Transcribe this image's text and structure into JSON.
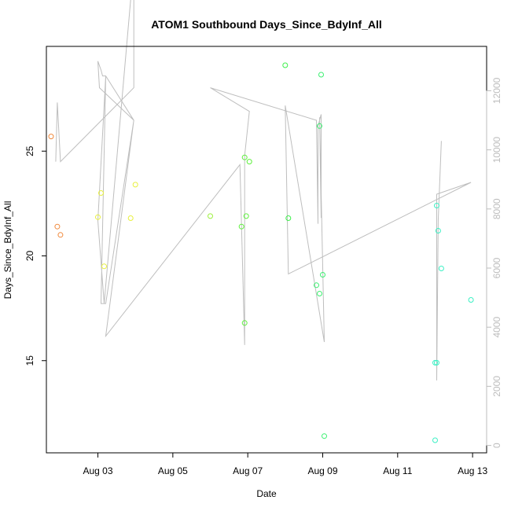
{
  "chart_data": {
    "type": "scatter",
    "title": "ATOM1 Southbound Days_Since_BdyInf_All",
    "xlabel": "Date",
    "ylabel": "Days_Since_BdyInf_All",
    "x_ticks": [
      "Aug 03",
      "Aug 05",
      "Aug 07",
      "Aug 09",
      "Aug 11",
      "Aug 13"
    ],
    "y_ticks": [
      "15",
      "20",
      "25"
    ],
    "y2_ticks": [
      "0",
      "2000",
      "4000",
      "6000",
      "8000",
      "10000",
      "12000"
    ],
    "xlim": [
      "2023-08-01 15:00",
      "2023-08-13 09:00"
    ],
    "ylim": [
      10.6,
      30.0
    ],
    "y2lim": [
      -250,
      13500
    ],
    "point_series": [
      {
        "color": "#f0893c",
        "points": [
          {
            "x": "2023-08-01 18:00",
            "y": 25.7
          },
          {
            "x": "2023-08-01 22:00",
            "y": 21.4
          },
          {
            "x": "2023-08-02 00:00",
            "y": 21.0
          }
        ]
      },
      {
        "color": "#e8f03c",
        "points": [
          {
            "x": "2023-08-03 00:00",
            "y": 21.85
          },
          {
            "x": "2023-08-03 02:00",
            "y": 23.0
          },
          {
            "x": "2023-08-03 04:00",
            "y": 19.5
          },
          {
            "x": "2023-08-03 21:00",
            "y": 21.8
          },
          {
            "x": "2023-08-04 00:00",
            "y": 23.4
          }
        ]
      },
      {
        "color": "#9cf03c",
        "points": [
          {
            "x": "2023-08-06 00:00",
            "y": 21.9
          }
        ]
      },
      {
        "color": "#5df03c",
        "points": [
          {
            "x": "2023-08-06 20:00",
            "y": 21.4
          },
          {
            "x": "2023-08-06 22:00",
            "y": 24.7
          },
          {
            "x": "2023-08-06 22:00",
            "y": 16.8
          },
          {
            "x": "2023-08-06 23:00",
            "y": 21.9
          },
          {
            "x": "2023-08-07 01:00",
            "y": 24.5
          }
        ]
      },
      {
        "color": "#3cf04a",
        "points": [
          {
            "x": "2023-08-08 00:00",
            "y": 29.1
          },
          {
            "x": "2023-08-08 02:00",
            "y": 21.8
          }
        ]
      },
      {
        "color": "#3cf071",
        "points": [
          {
            "x": "2023-08-08 20:00",
            "y": 18.6
          },
          {
            "x": "2023-08-08 22:00",
            "y": 18.2
          },
          {
            "x": "2023-08-08 22:00",
            "y": 26.2
          },
          {
            "x": "2023-08-08 23:00",
            "y": 28.65
          },
          {
            "x": "2023-08-09 00:00",
            "y": 19.1
          },
          {
            "x": "2023-08-09 01:00",
            "y": 11.4
          }
        ]
      },
      {
        "color": "#3cf0c4",
        "points": [
          {
            "x": "2023-08-12 00:00",
            "y": 11.2
          },
          {
            "x": "2023-08-12 00:00",
            "y": 14.9
          },
          {
            "x": "2023-08-12 01:00",
            "y": 14.9
          },
          {
            "x": "2023-08-12 01:00",
            "y": 22.4
          },
          {
            "x": "2023-08-12 02:00",
            "y": 21.2
          },
          {
            "x": "2023-08-12 04:00",
            "y": 19.4
          },
          {
            "x": "2023-08-12 23:00",
            "y": 17.9
          }
        ]
      }
    ],
    "line_series": {
      "axis": "right",
      "color": "#bebebe",
      "points": [
        {
          "x": "2023-08-01 21:00",
          "y": 9600
        },
        {
          "x": "2023-08-01 22:00",
          "y": 11600
        },
        {
          "x": "2023-08-02 00:00",
          "y": 9600
        },
        {
          "x": "2023-08-03 23:00",
          "y": 12100
        },
        {
          "x": "2023-08-03 23:00",
          "y": 16300
        },
        {
          "x": "2023-08-03 04:00",
          "y": 4800
        },
        {
          "x": "2023-08-03 00:00",
          "y": 7600
        },
        {
          "x": "2023-08-03 05:00",
          "y": 12500
        },
        {
          "x": "2023-08-03 02:00",
          "y": 4800
        },
        {
          "x": "2023-08-03 04:00",
          "y": 4800
        },
        {
          "x": "2023-08-03 05:00",
          "y": 4800
        },
        {
          "x": "2023-08-03 23:00",
          "y": 11000
        },
        {
          "x": "2023-08-03 05:00",
          "y": 12500
        },
        {
          "x": "2023-08-03 03:00",
          "y": 12500
        },
        {
          "x": "2023-08-03 02:00",
          "y": 12700
        },
        {
          "x": "2023-08-03 00:00",
          "y": 13000
        },
        {
          "x": "2023-08-03 01:00",
          "y": 12100
        },
        {
          "x": "2023-08-03 23:00",
          "y": 11000
        },
        {
          "x": "2023-08-03 05:00",
          "y": 3700
        },
        {
          "x": "2023-08-06 19:00",
          "y": 9500
        },
        {
          "x": "2023-08-06 22:00",
          "y": 3400
        },
        {
          "x": "2023-08-06 22:00",
          "y": 9800
        },
        {
          "x": "2023-08-07 01:00",
          "y": 11300
        },
        {
          "x": "2023-08-06 00:00",
          "y": 12100
        },
        {
          "x": "2023-08-08 20:00",
          "y": 11000
        },
        {
          "x": "2023-08-08 21:00",
          "y": 7500
        },
        {
          "x": "2023-08-08 21:00",
          "y": 10800
        },
        {
          "x": "2023-08-08 23:00",
          "y": 11200
        },
        {
          "x": "2023-08-08 23:00",
          "y": 7700
        },
        {
          "x": "2023-08-08 22:00",
          "y": 11100
        },
        {
          "x": "2023-08-09 01:00",
          "y": 3500
        },
        {
          "x": "2023-08-08 00:00",
          "y": 11500
        },
        {
          "x": "2023-08-08 02:00",
          "y": 5800
        },
        {
          "x": "2023-08-12 23:00",
          "y": 8900
        },
        {
          "x": "2023-08-12 01:00",
          "y": 8500
        },
        {
          "x": "2023-08-12 01:00",
          "y": 2200
        },
        {
          "x": "2023-08-12 02:00",
          "y": 7600
        },
        {
          "x": "2023-08-12 04:00",
          "y": 10300
        }
      ]
    },
    "grid": false,
    "legend": "none"
  }
}
